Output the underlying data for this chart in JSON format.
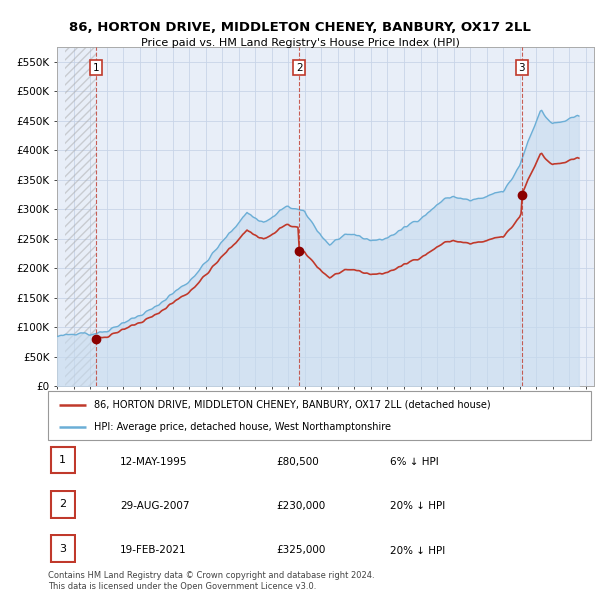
{
  "title": "86, HORTON DRIVE, MIDDLETON CHENEY, BANBURY, OX17 2LL",
  "subtitle": "Price paid vs. HM Land Registry's House Price Index (HPI)",
  "legend_line1": "86, HORTON DRIVE, MIDDLETON CHENEY, BANBURY, OX17 2LL (detached house)",
  "legend_line2": "HPI: Average price, detached house, West Northamptonshire",
  "footer1": "Contains HM Land Registry data © Crown copyright and database right 2024.",
  "footer2": "This data is licensed under the Open Government Licence v3.0.",
  "transactions": [
    {
      "num": 1,
      "date": "12-MAY-1995",
      "price": 80500,
      "pct": "6% ↓ HPI",
      "x": 1995.36
    },
    {
      "num": 2,
      "date": "29-AUG-2007",
      "price": 230000,
      "pct": "20% ↓ HPI",
      "x": 2007.66
    },
    {
      "num": 3,
      "date": "19-FEB-2021",
      "price": 325000,
      "pct": "20% ↓ HPI",
      "x": 2021.13
    }
  ],
  "hpi_color": "#6baed6",
  "hpi_fill_color": "#c6dbef",
  "price_color": "#c0392b",
  "marker_color": "#8b0000",
  "grid_color": "#c8d4e8",
  "plot_bg": "#e8eef8",
  "ylim": [
    0,
    575000
  ],
  "yticks": [
    0,
    50000,
    100000,
    150000,
    200000,
    250000,
    300000,
    350000,
    400000,
    450000,
    500000,
    550000
  ],
  "ytick_labels": [
    "£0",
    "£50K",
    "£100K",
    "£150K",
    "£200K",
    "£250K",
    "£300K",
    "£350K",
    "£400K",
    "£450K",
    "£500K",
    "£550K"
  ],
  "xlim": [
    1993.5,
    2025.5
  ],
  "xticks": [
    1993,
    1994,
    1995,
    1996,
    1997,
    1998,
    1999,
    2000,
    2001,
    2002,
    2003,
    2004,
    2005,
    2006,
    2007,
    2008,
    2009,
    2010,
    2011,
    2012,
    2013,
    2014,
    2015,
    2016,
    2017,
    2018,
    2019,
    2020,
    2021,
    2022,
    2023,
    2024,
    2025
  ]
}
